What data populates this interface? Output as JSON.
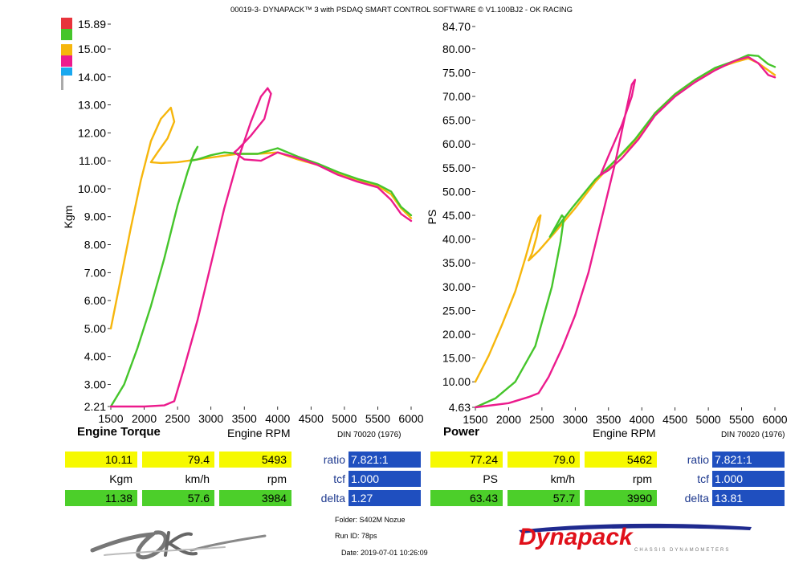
{
  "header_title": "00019-3- DYNAPACK™ 3 with PSDAQ SMART CONTROL SOFTWARE © V1.100BJ2 - OK RACING",
  "legend_colors": [
    "#e8343c",
    "#45c52b",
    "#f6b60c",
    "#ec1b8d",
    "#19a8ef",
    "#aaaaaa"
  ],
  "chart_data": [
    {
      "type": "line",
      "title": "Engine Torque",
      "xlabel": "Engine RPM",
      "ylabel": "Kgm",
      "din_label": "DIN 70020 (1976)",
      "xlim": [
        1500,
        6000
      ],
      "ylim": [
        2.21,
        15.89
      ],
      "x_ticks": [
        "1500",
        "2000",
        "2500",
        "3000",
        "3500",
        "4000",
        "4500",
        "5000",
        "5500",
        "6000"
      ],
      "y_ticks": [
        "2.21",
        "3.00",
        "4.00",
        "5.00",
        "6.00",
        "7.00",
        "8.00",
        "9.00",
        "10.00",
        "11.00",
        "12.00",
        "13.00",
        "14.00",
        "15.00",
        "15.89"
      ],
      "y_tick_values": [
        2.21,
        3,
        4,
        5,
        6,
        7,
        8,
        9,
        10,
        11,
        12,
        13,
        14,
        15,
        15.89
      ],
      "series": [
        {
          "color": "#f6b60c",
          "x": [
            1500,
            1650,
            1800,
            1950,
            2100,
            2250,
            2400,
            2450,
            2350,
            2200,
            2100,
            2250,
            2500,
            2800,
            3100,
            3400,
            3700,
            4000,
            4300,
            4600,
            4900,
            5200,
            5500,
            5700,
            5850,
            6000
          ],
          "y": [
            5.0,
            6.8,
            8.6,
            10.3,
            11.7,
            12.5,
            12.9,
            12.4,
            11.8,
            11.3,
            10.95,
            10.92,
            10.95,
            11.05,
            11.15,
            11.25,
            11.25,
            11.3,
            11.05,
            10.85,
            10.55,
            10.3,
            10.1,
            9.8,
            9.3,
            8.95
          ]
        },
        {
          "color": "#45c52b",
          "x": [
            1500,
            1700,
            1900,
            2100,
            2300,
            2500,
            2650,
            2750,
            2800,
            2780,
            2700,
            2800,
            3000,
            3200,
            3450,
            3700,
            4000,
            4300,
            4600,
            4900,
            5200,
            5500,
            5700,
            5850,
            6000
          ],
          "y": [
            2.21,
            3.0,
            4.3,
            5.8,
            7.5,
            9.4,
            10.6,
            11.3,
            11.5,
            11.4,
            11.0,
            11.05,
            11.2,
            11.3,
            11.25,
            11.25,
            11.45,
            11.15,
            10.9,
            10.6,
            10.35,
            10.15,
            9.9,
            9.35,
            9.05
          ]
        },
        {
          "color": "#ec1b8d",
          "x": [
            1500,
            2000,
            2300,
            2450,
            2600,
            2800,
            3000,
            3200,
            3400,
            3600,
            3750,
            3850,
            3900,
            3800,
            3600,
            3400,
            3350,
            3500,
            3750,
            4000,
            4300,
            4600,
            4900,
            5200,
            5500,
            5700,
            5850,
            6000
          ],
          "y": [
            2.21,
            2.21,
            2.25,
            2.4,
            3.6,
            5.3,
            7.3,
            9.3,
            11.0,
            12.4,
            13.3,
            13.6,
            13.4,
            12.5,
            11.9,
            11.4,
            11.3,
            11.05,
            11.0,
            11.3,
            11.1,
            10.85,
            10.5,
            10.25,
            10.05,
            9.6,
            9.1,
            8.85
          ]
        }
      ]
    },
    {
      "type": "line",
      "title": "Power",
      "xlabel": "Engine RPM",
      "ylabel": "PS",
      "din_label": "DIN 70020 (1976)",
      "xlim": [
        1500,
        6000
      ],
      "ylim": [
        4.63,
        84.7
      ],
      "x_ticks": [
        "1500",
        "2000",
        "2500",
        "3000",
        "3500",
        "4000",
        "4500",
        "5000",
        "5500",
        "6000"
      ],
      "y_ticks": [
        "4.63",
        "10.00",
        "15.00",
        "20.00",
        "25.00",
        "30.00",
        "35.00",
        "40.00",
        "45.00",
        "50.00",
        "55.00",
        "60.00",
        "65.00",
        "70.00",
        "75.00",
        "80.00",
        "84.70"
      ],
      "y_tick_values": [
        4.63,
        10,
        15,
        20,
        25,
        30,
        35,
        40,
        45,
        50,
        55,
        60,
        65,
        70,
        75,
        80,
        84.7
      ],
      "series": [
        {
          "color": "#f6b60c",
          "x": [
            1500,
            1700,
            1900,
            2100,
            2250,
            2350,
            2450,
            2480,
            2420,
            2350,
            2300,
            2450,
            2700,
            3000,
            3300,
            3600,
            3900,
            4200,
            4500,
            4800,
            5100,
            5400,
            5600,
            5750,
            5900,
            6000
          ],
          "y": [
            10.0,
            15.5,
            22.0,
            29.0,
            36.0,
            41.0,
            44.5,
            45.0,
            40.5,
            37.0,
            35.5,
            37.5,
            41.5,
            46.5,
            52.0,
            56.5,
            60.5,
            66.5,
            70.5,
            73.5,
            75.8,
            77.2,
            78.0,
            77.0,
            75.5,
            74.5
          ]
        },
        {
          "color": "#45c52b",
          "x": [
            1500,
            1800,
            2100,
            2400,
            2650,
            2780,
            2830,
            2800,
            2700,
            2620,
            2700,
            2950,
            3300,
            3600,
            3900,
            4200,
            4500,
            4800,
            5100,
            5400,
            5600,
            5750,
            5900,
            6000
          ],
          "y": [
            4.63,
            6.5,
            10.0,
            17.5,
            30.0,
            39.5,
            44.5,
            45.0,
            42.5,
            40.5,
            42.0,
            46.5,
            52.5,
            56.5,
            61.0,
            66.5,
            70.5,
            73.5,
            76.0,
            77.5,
            78.7,
            78.5,
            76.8,
            76.2
          ]
        },
        {
          "color": "#ec1b8d",
          "x": [
            1500,
            2000,
            2300,
            2450,
            2600,
            2800,
            3000,
            3200,
            3400,
            3600,
            3750,
            3850,
            3900,
            3850,
            3700,
            3500,
            3380,
            3500,
            3700,
            3950,
            4200,
            4500,
            4800,
            5100,
            5400,
            5600,
            5750,
            5900,
            6000
          ],
          "y": [
            4.63,
            5.5,
            6.8,
            7.6,
            11.0,
            17.0,
            24.0,
            33.0,
            44.5,
            56.0,
            66.0,
            72.5,
            73.5,
            70.0,
            64.0,
            57.5,
            53.5,
            54.5,
            57.0,
            61.0,
            66.0,
            70.0,
            73.0,
            75.5,
            77.5,
            78.3,
            77.0,
            74.5,
            74.0
          ]
        }
      ]
    }
  ],
  "left_table": {
    "row1": [
      "10.11",
      "79.4",
      "5493"
    ],
    "units": [
      "Kgm",
      "km/h",
      "rpm"
    ],
    "row2": [
      "11.38",
      "57.6",
      "3984"
    ],
    "ratio_label": "ratio",
    "ratio_value": "7.821:1",
    "tcf_label": "tcf",
    "tcf_value": "1.000",
    "delta_label": "delta",
    "delta_value": "1.27"
  },
  "right_table": {
    "row1": [
      "77.24",
      "79.0",
      "5462"
    ],
    "units": [
      "PS",
      "km/h",
      "rpm"
    ],
    "row2": [
      "63.43",
      "57.7",
      "3990"
    ],
    "ratio_label": "ratio",
    "ratio_value": "7.821:1",
    "tcf_label": "tcf",
    "tcf_value": "1.000",
    "delta_label": "delta",
    "delta_value": "13.81"
  },
  "info": {
    "folder_label": "Folder:",
    "folder_value": "S402M Nozue",
    "run_label": "Run ID:",
    "run_value": "78ps",
    "date_label": "Date:",
    "date_value": "2019-07-01 10:26:09"
  },
  "logo": {
    "text": "Dynapack",
    "subtext": "CHASSIS DYNAMOMETERS"
  }
}
